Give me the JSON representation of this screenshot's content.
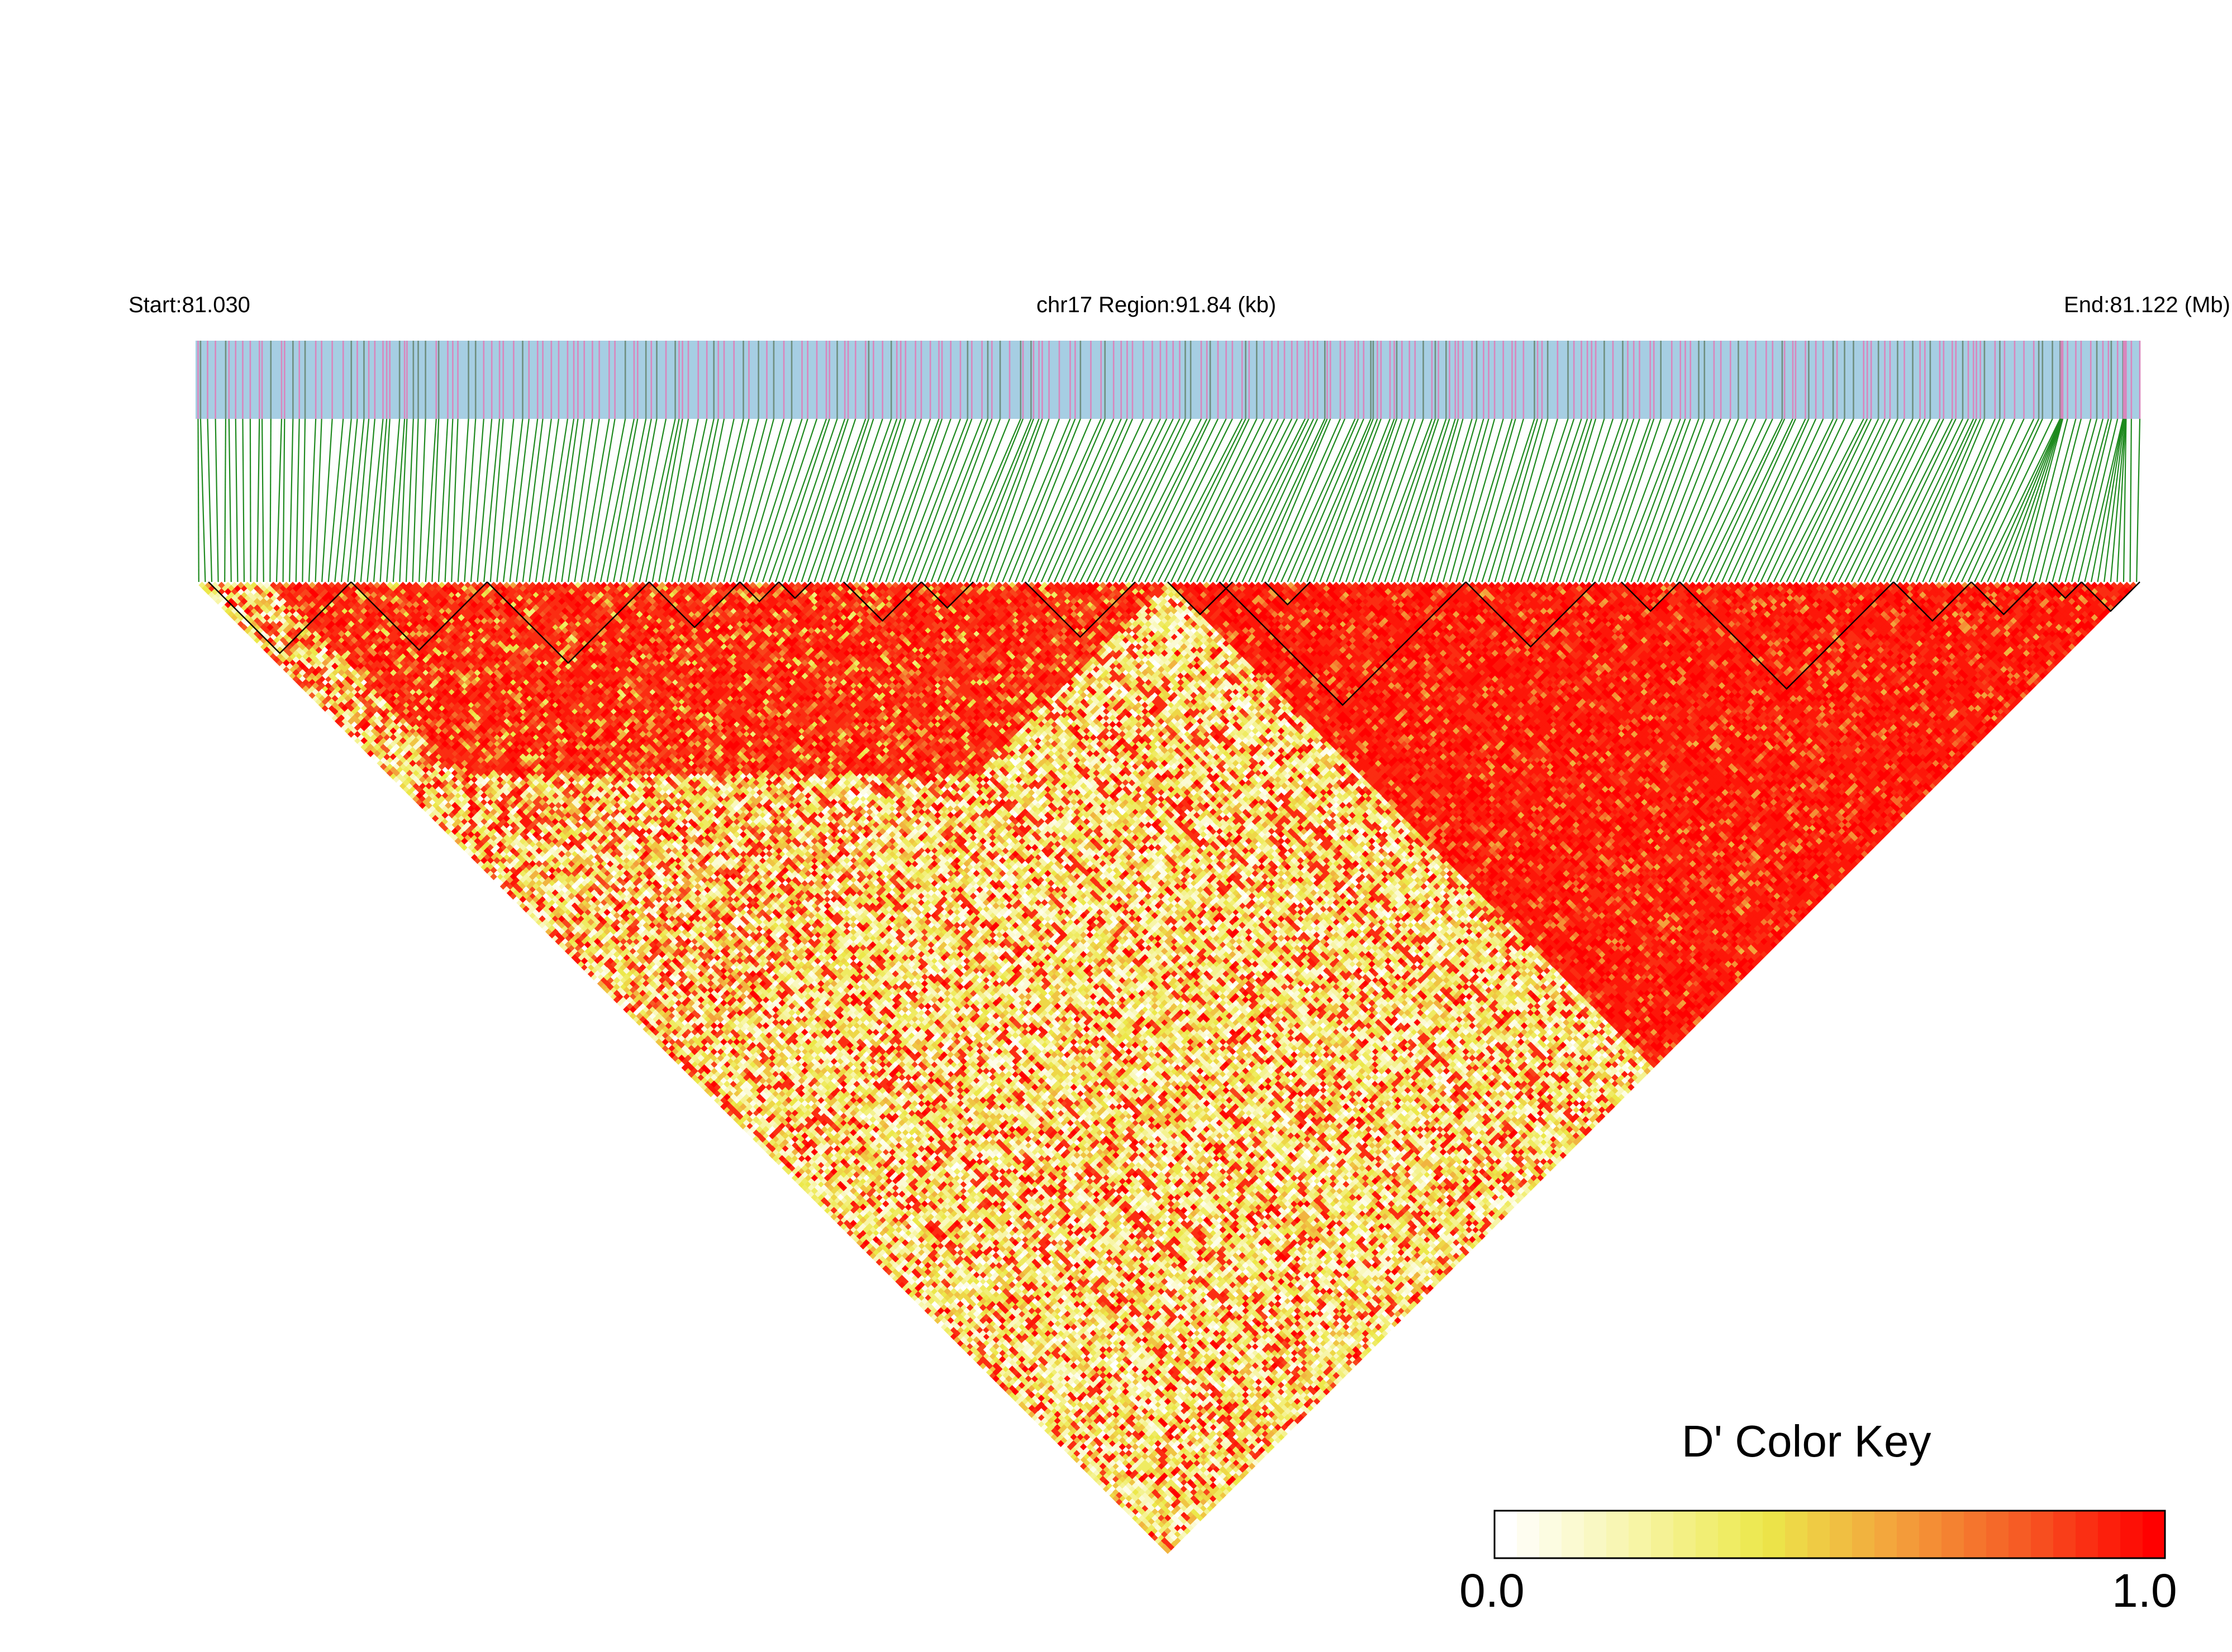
{
  "chart_data": {
    "type": "heatmap",
    "subtype": "linkage-disequilibrium-triangle",
    "region": {
      "chromosome": "chr17",
      "start_label": "Start:81.030",
      "end_label": "End:81.122 (Mb)",
      "region_label": "chr17 Region:91.84 (kb)",
      "start_mb": 81.03,
      "end_mb": 81.122,
      "length_kb": 91.84
    },
    "snp_count_estimate": 300,
    "snp_track": {
      "background": "#a6cee3",
      "marker_colors": [
        "#d986bd",
        "#6f8f7f"
      ],
      "connector_color": "#1f8a1f"
    },
    "matrix_pattern_description_values": {
      "blocks": [
        {
          "from": 0.03,
          "to": 0.5,
          "mean_dprime": 0.82
        },
        {
          "from": 0.5,
          "to": 1.0,
          "mean_dprime": 0.93
        }
      ],
      "between_block_mean_dprime": 0.3
    },
    "color_key": {
      "title": "D' Color Key",
      "min_label": "0.0",
      "max_label": "1.0",
      "min": 0.0,
      "max": 1.0,
      "stops": [
        "#ffffff",
        "#f7f5a8",
        "#ece84a",
        "#f3a23c",
        "#f65a24",
        "#ff0000"
      ]
    }
  }
}
